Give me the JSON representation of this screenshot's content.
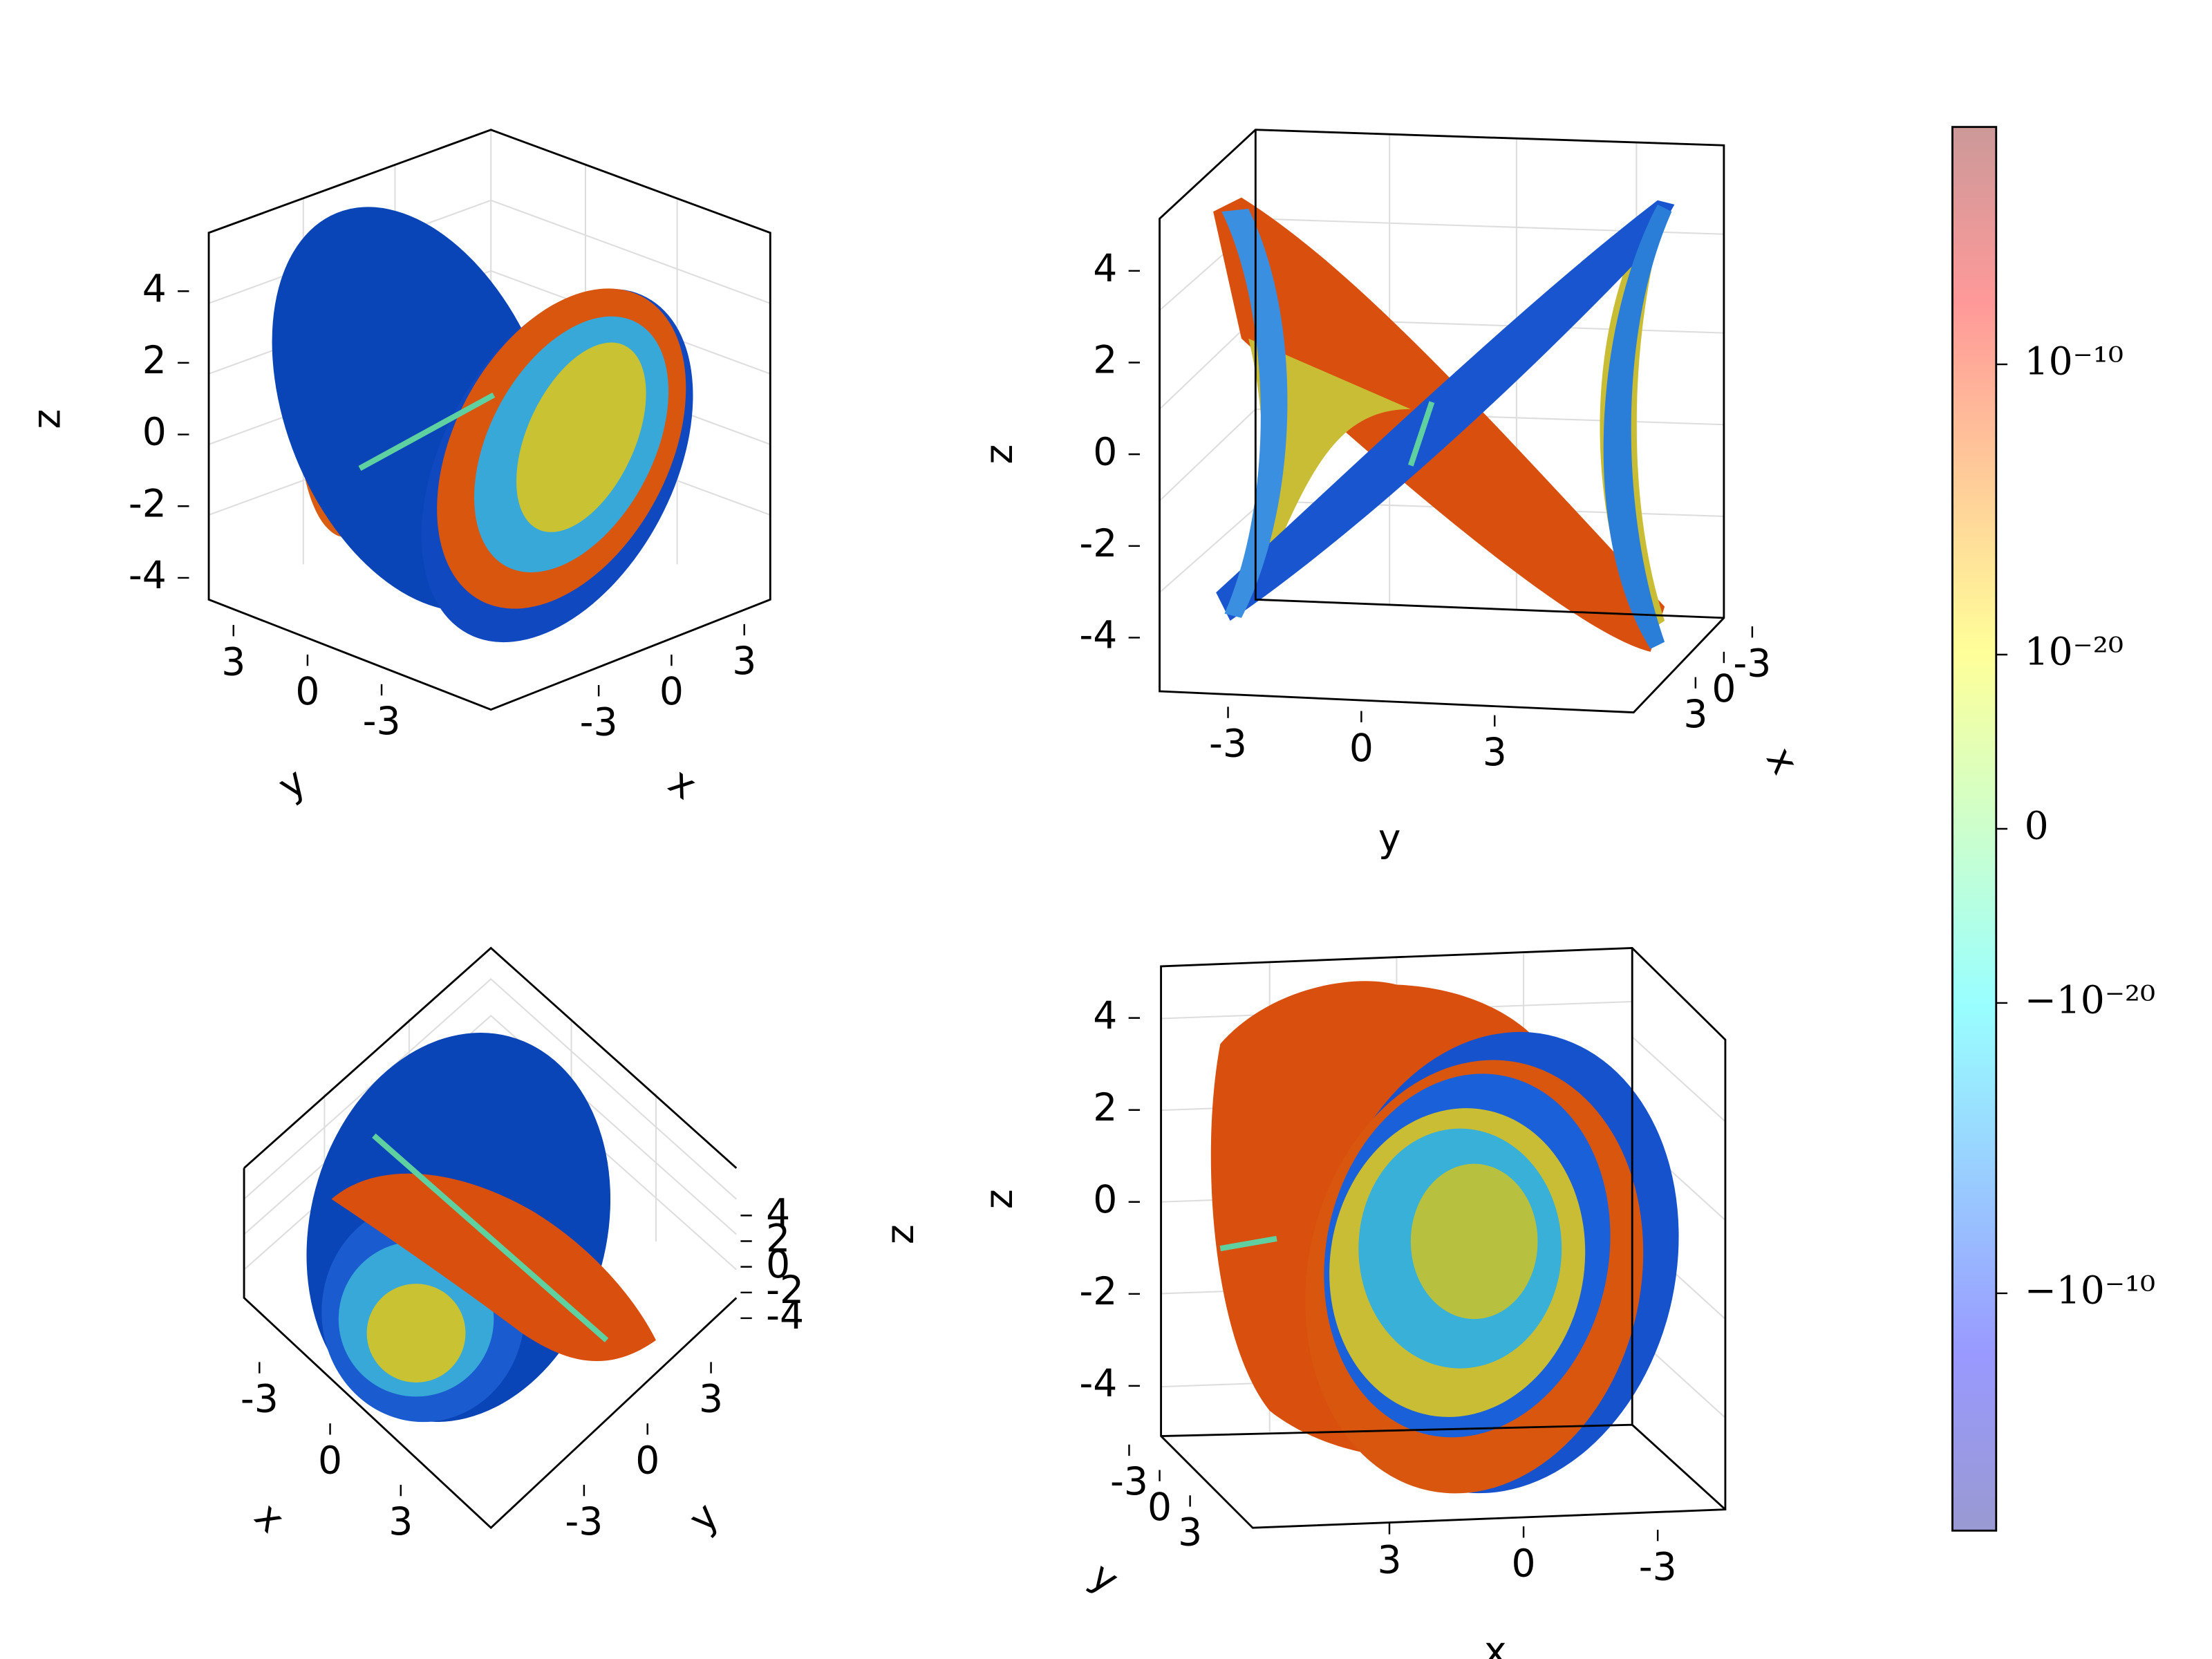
{
  "chart_data": [
    {
      "type": "scatter3d",
      "xlabel": "x",
      "ylabel": "y",
      "zlabel": "z",
      "xlim": [
        -5.5,
        5.5
      ],
      "ylim": [
        -5.5,
        5.5
      ],
      "zlim": [
        -4.6,
        5.5
      ],
      "xticks": [
        -3,
        0,
        3
      ],
      "yticks": [
        -3,
        0,
        3
      ],
      "zticks": [
        -4,
        -2,
        0,
        2,
        4
      ]
    },
    {
      "type": "scatter3d",
      "xlabel": "x",
      "ylabel": "y",
      "zlabel": "z",
      "xlim": [
        -5.5,
        5.5
      ],
      "ylim": [
        -5.5,
        5.5
      ],
      "zlim": [
        -4.6,
        5.5
      ],
      "xticks": [
        -3,
        0,
        3
      ],
      "yticks": [
        -3,
        0,
        3
      ],
      "zticks": [
        -4,
        -2,
        0,
        2,
        4
      ]
    },
    {
      "type": "scatter3d",
      "xlabel": "x",
      "ylabel": "y",
      "zlabel": "z",
      "xlim": [
        -5.5,
        5.5
      ],
      "ylim": [
        -5.5,
        5.5
      ],
      "zlim": [
        -4.6,
        5.5
      ],
      "xticks": [
        -3,
        0,
        3
      ],
      "yticks": [
        -3,
        0,
        3
      ],
      "zticks": [
        -4,
        -2,
        0,
        2,
        4
      ]
    },
    {
      "type": "scatter3d",
      "xlabel": "x",
      "ylabel": "y",
      "zlabel": "z",
      "xlim": [
        -5.5,
        5.5
      ],
      "ylim": [
        -5.5,
        5.5
      ],
      "zlim": [
        -4.6,
        5.5
      ],
      "xticks": [
        -3,
        0,
        3
      ],
      "yticks": [
        -3,
        0,
        3
      ],
      "zticks": [
        -4,
        -2,
        0,
        2,
        4
      ]
    }
  ],
  "colorbar": {
    "scale": "symlog",
    "linthresh": 1e-25,
    "clim": [
      -0.015,
      0.015
    ],
    "alpha": 0.4,
    "colormap": [
      "#00008f",
      "#0000ff",
      "#0080ff",
      "#00ffff",
      "#80ff80",
      "#ffff00",
      "#ff8000",
      "#ff0000",
      "#800000"
    ],
    "ticks": [
      {
        "value": 1e-10,
        "label": "10⁻¹⁰"
      },
      {
        "value": 1e-20,
        "label": "10⁻²⁰"
      },
      0,
      {
        "value": -1e-20,
        "label": "−10⁻²⁰"
      },
      {
        "value": -1e-10,
        "label": "−10⁻¹⁰"
      }
    ]
  }
}
